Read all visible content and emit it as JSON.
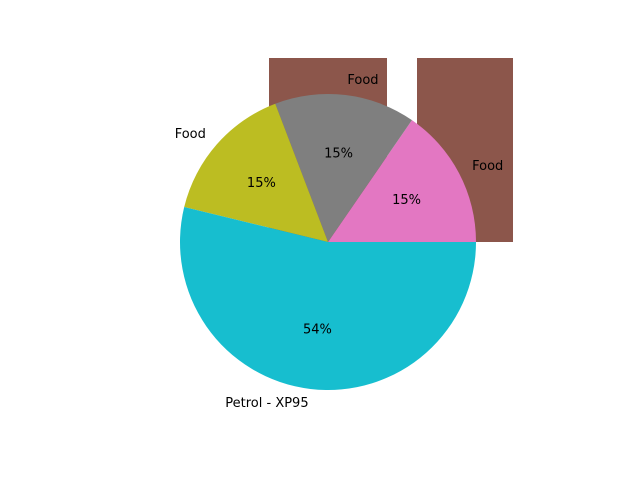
{
  "chart_data": {
    "type": "pie",
    "title": "",
    "slices": [
      {
        "label": "Food",
        "pct_label": "15%",
        "value": 15.4,
        "color": "#e377c2"
      },
      {
        "label": "Food",
        "pct_label": "15%",
        "value": 15.4,
        "color": "#7f7f7f"
      },
      {
        "label": "Food",
        "pct_label": "15%",
        "value": 15.4,
        "color": "#bcbd22"
      },
      {
        "label": "Petrol - XP95",
        "pct_label": "54%",
        "value": 53.8,
        "color": "#17becf"
      }
    ],
    "start_angle_deg": 0,
    "direction": "counterclockwise",
    "legend": "none",
    "background_bars": [
      {
        "value": 1,
        "color": "#8c564b"
      },
      {
        "value": 1,
        "color": "#8c564b"
      }
    ]
  }
}
